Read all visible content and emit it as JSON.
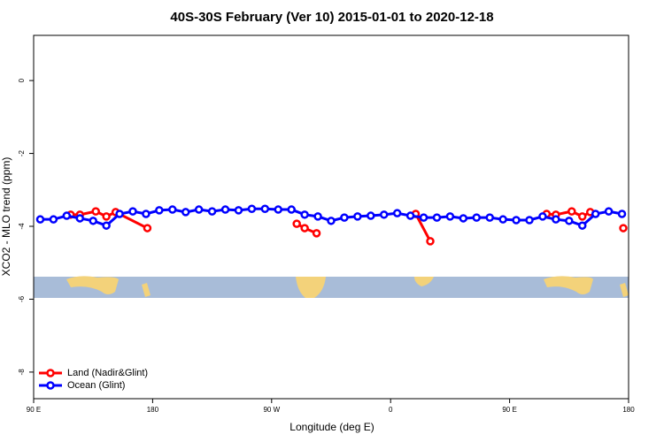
{
  "chart_data": {
    "type": "line",
    "title": "40S-30S February (Ver 10)   2015-01-01 to 2020-12-18",
    "xlabel": "Longitude (deg E)",
    "ylabel": "XCO2 - MLO trend (ppm)",
    "xlim": [
      90,
      540
    ],
    "ylim": [
      -8.73,
      1.24
    ],
    "xticks": [
      {
        "value": 90,
        "label": "90 E"
      },
      180,
      {
        "value": 270,
        "label": "90 W"
      },
      {
        "value": 360,
        "label": "0"
      },
      {
        "value": 450,
        "label": "90 E"
      },
      {
        "value": 540,
        "label": "180"
      }
    ],
    "yticks": [
      0,
      -2,
      -4,
      -6,
      -8
    ],
    "legend": "bottom-left",
    "series": [
      {
        "name": "Land (Nadir&Glint)",
        "color": "#ff0000",
        "x": [
          118,
          125,
          137,
          145,
          152,
          176,
          null,
          289,
          295,
          304,
          null,
          379,
          390,
          null,
          478,
          485,
          497,
          505,
          511,
          null,
          536
        ],
        "values": [
          -3.68,
          -3.68,
          -3.59,
          -3.73,
          -3.61,
          -4.05,
          null,
          -3.93,
          -4.05,
          -4.19,
          null,
          -3.66,
          -4.41,
          null,
          -3.66,
          -3.68,
          -3.59,
          -3.73,
          -3.61,
          null,
          -4.05
        ]
      },
      {
        "name": "Ocean (Glint)",
        "color": "#0000ff",
        "x": [
          95,
          105,
          115,
          125,
          135,
          145,
          155,
          165,
          175,
          185,
          195,
          205,
          215,
          225,
          235,
          245,
          255,
          265,
          275,
          285,
          295,
          305,
          315,
          325,
          335,
          345,
          355,
          365,
          375,
          385,
          395,
          405,
          415,
          425,
          435,
          445,
          455,
          465,
          475,
          485,
          495,
          505,
          515,
          525,
          535
        ],
        "values": [
          -3.81,
          -3.81,
          -3.71,
          -3.78,
          -3.85,
          -3.98,
          -3.66,
          -3.59,
          -3.66,
          -3.56,
          -3.54,
          -3.61,
          -3.54,
          -3.59,
          -3.54,
          -3.56,
          -3.52,
          -3.52,
          -3.54,
          -3.54,
          -3.68,
          -3.73,
          -3.85,
          -3.76,
          -3.73,
          -3.71,
          -3.68,
          -3.64,
          -3.71,
          -3.76,
          -3.76,
          -3.73,
          -3.78,
          -3.76,
          -3.76,
          -3.81,
          -3.83,
          -3.83,
          -3.73,
          -3.81,
          -3.85,
          -3.98,
          -3.66,
          -3.59,
          -3.66
        ]
      }
    ]
  }
}
